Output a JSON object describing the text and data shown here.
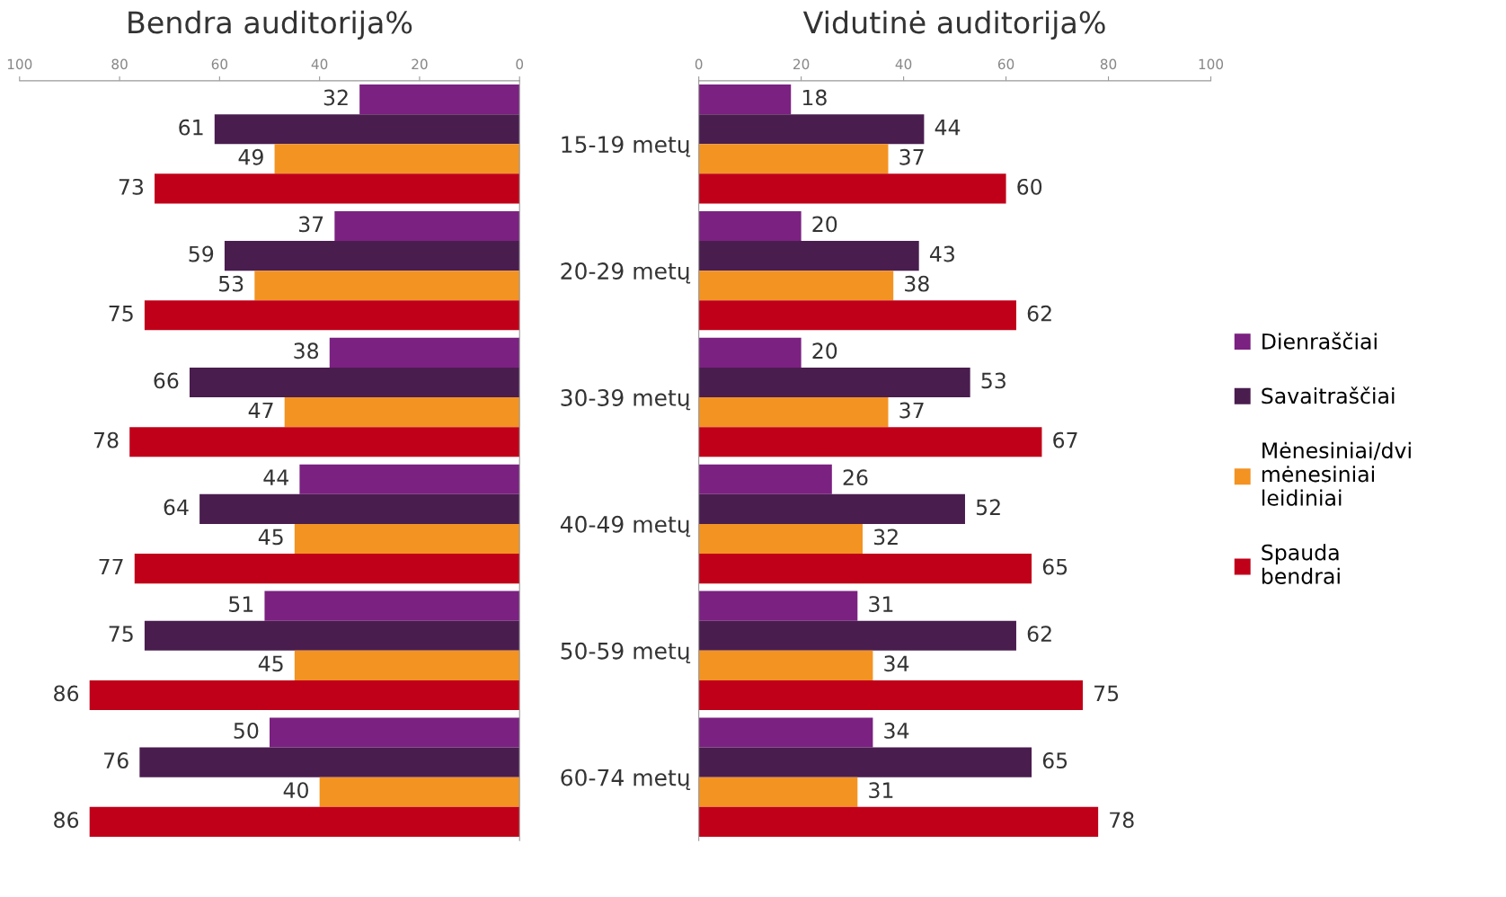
{
  "chart_data": [
    {
      "type": "bar",
      "orientation": "horizontal",
      "title": "Bendra auditorija%",
      "categories": [
        "15-19 metų",
        "20-29 metų",
        "30-39 metų",
        "40-49 metų",
        "50-59 metų",
        "60-74 metų"
      ],
      "xlim": [
        100,
        0
      ],
      "xticks": [
        100,
        80,
        60,
        40,
        20,
        0
      ],
      "data_labels": true,
      "legend": false,
      "series": [
        {
          "color": "#7b2181",
          "values": [
            32,
            37,
            38,
            44,
            51,
            50
          ]
        },
        {
          "color": "#4a1d4f",
          "values": [
            61,
            59,
            66,
            64,
            75,
            76
          ]
        },
        {
          "color": "#f39322",
          "values": [
            49,
            53,
            47,
            45,
            45,
            40
          ]
        },
        {
          "color": "#c00018",
          "values": [
            73,
            75,
            78,
            77,
            86,
            86
          ]
        }
      ]
    },
    {
      "type": "bar",
      "orientation": "horizontal",
      "title": "Vidutinė auditorija%",
      "categories": [
        null,
        null,
        null,
        null,
        null,
        null
      ],
      "tick_labels": "x",
      "xlim": [
        0,
        100
      ],
      "xticks": [
        0,
        20,
        40,
        60,
        80,
        100
      ],
      "data_labels": true,
      "legend": "right",
      "series": [
        {
          "name": "Dienraščiai",
          "color": "#7b2181",
          "values": [
            18,
            20,
            20,
            26,
            31,
            34
          ]
        },
        {
          "name": "Savaitraščiai",
          "color": "#4a1d4f",
          "values": [
            44,
            43,
            53,
            52,
            62,
            65
          ]
        },
        {
          "name": "Mėnesiniai/dvi\nmėnesiniai\nleidiniai",
          "color": "#f39322",
          "values": [
            37,
            38,
            37,
            32,
            34,
            31
          ]
        },
        {
          "name": "Spauda\nbendrai",
          "color": "#c00018",
          "values": [
            60,
            62,
            67,
            65,
            75,
            78
          ]
        }
      ]
    }
  ]
}
